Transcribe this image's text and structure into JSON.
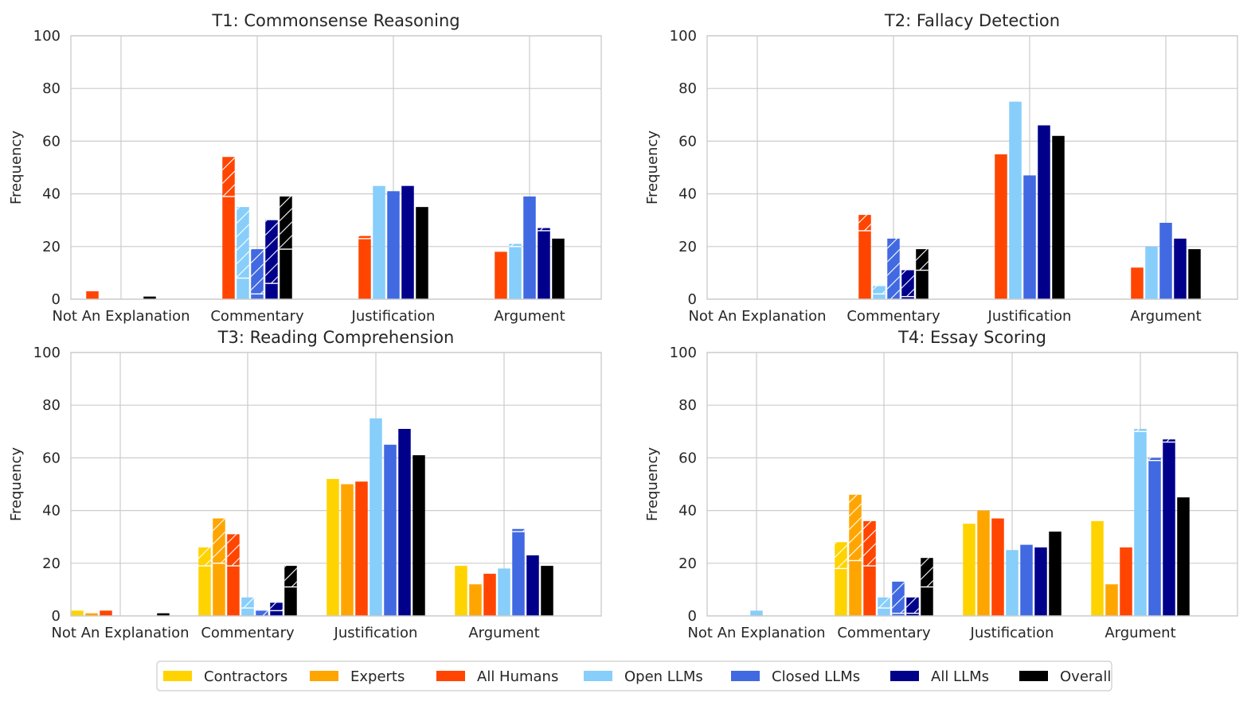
{
  "chart_data": {
    "type": "bar",
    "categories": [
      "Not An Explanation",
      "Commentary",
      "Justification",
      "Argument"
    ],
    "ylabel": "Frequency",
    "ylim": [
      0,
      100
    ],
    "yticks": [
      "0",
      "20",
      "40",
      "60",
      "80",
      "100"
    ],
    "note": "Hatched upper segment of a bar = portion on top of the solid base value",
    "legend": {
      "placement": "bottom-center",
      "entries": [
        {
          "name": "Contractors",
          "color": "#FFD300"
        },
        {
          "name": "Experts",
          "color": "#FFA500"
        },
        {
          "name": "All Humans",
          "color": "#FF4500"
        },
        {
          "name": "Open LLMs",
          "color": "#87CEFA"
        },
        {
          "name": "Closed LLMs",
          "color": "#4169E1"
        },
        {
          "name": "All LLMs",
          "color": "#00008B"
        },
        {
          "name": "Overall",
          "color": "#000000"
        }
      ]
    },
    "panels": [
      {
        "title": "T1: Commonsense Reasoning",
        "series": [
          {
            "name": "All Humans",
            "color": "#FF4500",
            "values": [
              3,
              54,
              24,
              18
            ],
            "solid": [
              3,
              39,
              23,
              18
            ]
          },
          {
            "name": "Open LLMs",
            "color": "#87CEFA",
            "values": [
              0,
              35,
              43,
              21
            ],
            "solid": [
              0,
              8,
              43,
              20
            ]
          },
          {
            "name": "Closed LLMs",
            "color": "#4169E1",
            "values": [
              0,
              19,
              41,
              39
            ],
            "solid": [
              0,
              2,
              41,
              39
            ]
          },
          {
            "name": "All LLMs",
            "color": "#00008B",
            "values": [
              0,
              30,
              43,
              27
            ],
            "solid": [
              0,
              6,
              43,
              26
            ]
          },
          {
            "name": "Overall",
            "color": "#000000",
            "values": [
              1,
              39,
              35,
              23
            ],
            "solid": [
              1,
              19,
              35,
              23
            ]
          }
        ]
      },
      {
        "title": "T2: Fallacy Detection",
        "series": [
          {
            "name": "All Humans",
            "color": "#FF4500",
            "values": [
              0,
              32,
              55,
              12
            ],
            "solid": [
              0,
              26,
              55,
              12
            ]
          },
          {
            "name": "Open LLMs",
            "color": "#87CEFA",
            "values": [
              0,
              5,
              75,
              20
            ],
            "solid": [
              0,
              2,
              75,
              20
            ]
          },
          {
            "name": "Closed LLMs",
            "color": "#4169E1",
            "values": [
              0,
              23,
              47,
              29
            ],
            "solid": [
              0,
              0,
              47,
              29
            ]
          },
          {
            "name": "All LLMs",
            "color": "#00008B",
            "values": [
              0,
              11,
              66,
              23
            ],
            "solid": [
              0,
              1,
              66,
              23
            ]
          },
          {
            "name": "Overall",
            "color": "#000000",
            "values": [
              0,
              19,
              62,
              19
            ],
            "solid": [
              0,
              11,
              62,
              19
            ]
          }
        ]
      },
      {
        "title": "T3: Reading Comprehension",
        "series": [
          {
            "name": "Contractors",
            "color": "#FFD300",
            "values": [
              2,
              26,
              52,
              19
            ],
            "solid": [
              2,
              19,
              52,
              19
            ]
          },
          {
            "name": "Experts",
            "color": "#FFA500",
            "values": [
              1,
              37,
              50,
              12
            ],
            "solid": [
              1,
              20,
              50,
              12
            ]
          },
          {
            "name": "All Humans",
            "color": "#FF4500",
            "values": [
              2,
              31,
              51,
              16
            ],
            "solid": [
              2,
              19,
              51,
              16
            ]
          },
          {
            "name": "Open LLMs",
            "color": "#87CEFA",
            "values": [
              0,
              7,
              75,
              18
            ],
            "solid": [
              0,
              3,
              75,
              18
            ]
          },
          {
            "name": "Closed LLMs",
            "color": "#4169E1",
            "values": [
              0,
              2,
              65,
              33
            ],
            "solid": [
              0,
              0,
              65,
              32
            ]
          },
          {
            "name": "All LLMs",
            "color": "#00008B",
            "values": [
              0,
              5,
              71,
              23
            ],
            "solid": [
              0,
              2,
              71,
              23
            ]
          },
          {
            "name": "Overall",
            "color": "#000000",
            "values": [
              1,
              19,
              61,
              19
            ],
            "solid": [
              1,
              11,
              61,
              19
            ]
          }
        ]
      },
      {
        "title": "T4: Essay Scoring",
        "series": [
          {
            "name": "Contractors",
            "color": "#FFD300",
            "values": [
              0,
              28,
              35,
              36
            ],
            "solid": [
              0,
              18,
              35,
              36
            ]
          },
          {
            "name": "Experts",
            "color": "#FFA500",
            "values": [
              0,
              46,
              40,
              12
            ],
            "solid": [
              0,
              21,
              40,
              12
            ]
          },
          {
            "name": "All Humans",
            "color": "#FF4500",
            "values": [
              0,
              36,
              37,
              26
            ],
            "solid": [
              0,
              19,
              37,
              26
            ]
          },
          {
            "name": "Open LLMs",
            "color": "#87CEFA",
            "values": [
              2,
              7,
              25,
              71
            ],
            "solid": [
              2,
              3,
              25,
              70
            ]
          },
          {
            "name": "Closed LLMs",
            "color": "#4169E1",
            "values": [
              0,
              13,
              27,
              60
            ],
            "solid": [
              0,
              1,
              27,
              59
            ]
          },
          {
            "name": "All LLMs",
            "color": "#00008B",
            "values": [
              0,
              7,
              26,
              67
            ],
            "solid": [
              0,
              1,
              26,
              66
            ]
          },
          {
            "name": "Overall",
            "color": "#000000",
            "values": [
              0,
              22,
              32,
              45
            ],
            "solid": [
              0,
              11,
              32,
              45
            ]
          }
        ]
      }
    ]
  }
}
